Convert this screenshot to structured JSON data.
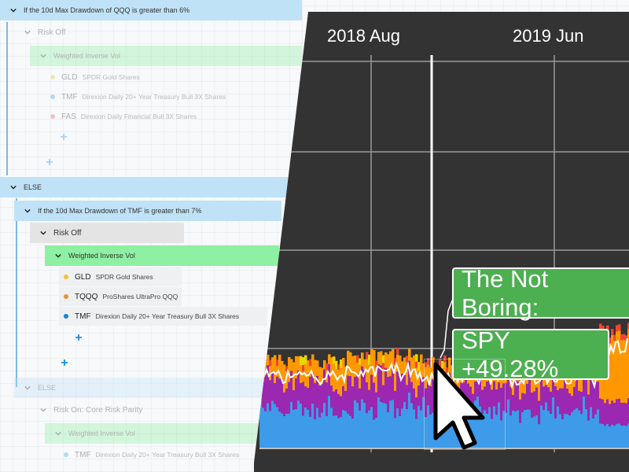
{
  "tree": {
    "root_condition": "If the 10d Max Drawdown of QQQ is greater than 6%",
    "branch1": {
      "group_label": "Risk Off",
      "weighting_label": "Weighted Inverse Vol",
      "assets": [
        {
          "ticker": "GLD",
          "name": "SPDR Gold Shares",
          "color": "#f1c232"
        },
        {
          "ticker": "TMF",
          "name": "Direxion Daily 20+ Year Treasury Bull 3X Shares",
          "color": "#3d9be9"
        },
        {
          "ticker": "FAS",
          "name": "Direxion Daily Financial Bull 3X Shares",
          "color": "#e06666"
        }
      ]
    },
    "else_label": "ELSE",
    "branch2": {
      "condition": "If the 10d Max Drawdown of TMF is greater than 7%",
      "group_label": "Risk Off",
      "weighting_label": "Weighted Inverse Vol",
      "assets": [
        {
          "ticker": "GLD",
          "name": "SPDR Gold Shares",
          "color": "#f1c232"
        },
        {
          "ticker": "TQQQ",
          "name": "ProShares UltraPro QQQ",
          "color": "#e69138"
        },
        {
          "ticker": "TMF",
          "name": "Direxion Daily 20+ Year Treasury Bull 3X Shares",
          "color": "#1b7fd4"
        }
      ]
    },
    "branch3": {
      "else_label": "ELSE",
      "group_label": "Risk On: Core Risk Parity",
      "weighting_label": "Weighted Inverse Vol",
      "assets": [
        {
          "ticker": "TMF",
          "name": "Direxion Daily 20+ Year Treasury Bull 3X Shares",
          "color": "#3d9be9"
        }
      ]
    },
    "add_symbol": "+"
  },
  "chart": {
    "x_labels": [
      "2018 Aug",
      "2019 Jun"
    ],
    "tooltip_strategy": "The Not Boring:",
    "tooltip_benchmark": "SPY +49.28%",
    "allocation_colors": [
      "#3d9be9",
      "#9c27b0",
      "#ff9800",
      "#f44336",
      "#e6d800"
    ],
    "line_color": "#ffffff"
  }
}
